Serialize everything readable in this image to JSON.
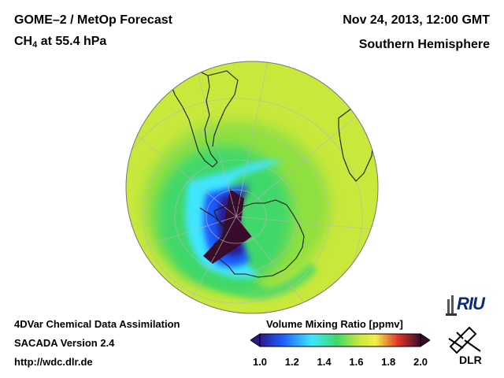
{
  "header": {
    "title_line1": "GOME–2 / MetOp Forecast",
    "species": "CH",
    "species_subscript": "4",
    "level": "at 55.4 hPa",
    "date": "Nov 24, 2013, 12:00 GMT",
    "hemisphere": "Southern Hemisphere"
  },
  "footer": {
    "line1": "4DVar Chemical Data Assimilation",
    "line2": "SACADA Version 2.4",
    "line3": "http://wdc.dlr.de"
  },
  "colorbar": {
    "title": "Volume Mixing Ratio [ppmv]",
    "min": 1.0,
    "max": 2.0,
    "ticks": [
      "1.0",
      "1.2",
      "1.4",
      "1.6",
      "1.8",
      "2.0"
    ]
  },
  "logos": {
    "riu": "RIU",
    "dlr": "DLR"
  },
  "colors": {
    "dark": "#3a0c2c",
    "purple": "#2a1a8a",
    "blue": "#1e5cff",
    "cyan": "#3fe6ff",
    "green": "#3fd86a",
    "lightgreen": "#8fe040",
    "yellowgreen": "#c8e83c",
    "yellow": "#f2f04a",
    "red": "#e0342a",
    "coast": "#1a1a1a",
    "grid": "#b8b8b8"
  }
}
